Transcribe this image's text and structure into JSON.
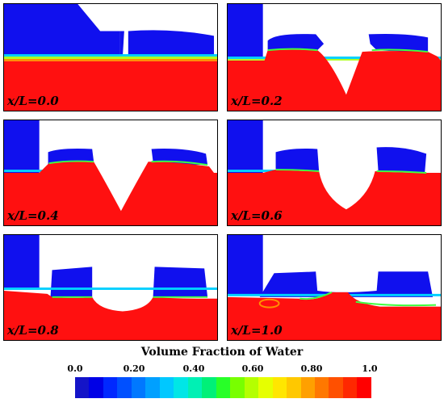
{
  "panels": [
    {
      "label": "x/L=0.0"
    },
    {
      "label": "x/L=0.2"
    },
    {
      "label": "x/L=0.4"
    },
    {
      "label": "x/L=0.6"
    },
    {
      "label": "x/L=0.8"
    },
    {
      "label": "x/L=1.0"
    }
  ],
  "colorbar": {
    "title": "Volume Fraction of Water",
    "ticks": [
      "0.0",
      "0.20",
      "0.40",
      "0.60",
      "0.80",
      "1.0"
    ],
    "colors": [
      "#1414c8",
      "#0000e6",
      "#0028ff",
      "#0050ff",
      "#0078ff",
      "#00a0ff",
      "#00c8ff",
      "#00e6e6",
      "#00f0b4",
      "#00f078",
      "#28ff28",
      "#78ff00",
      "#b4ff00",
      "#e6ff00",
      "#ffe600",
      "#ffc800",
      "#ffa000",
      "#ff7800",
      "#ff5000",
      "#ff2800",
      "#ff0000"
    ],
    "water_color": "#ff1010",
    "air_color": "#1010ee"
  }
}
